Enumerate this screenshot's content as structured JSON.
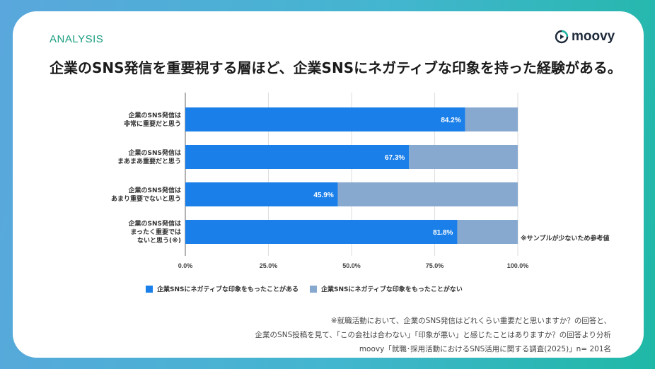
{
  "header": {
    "section_label": "ANALYSIS",
    "logo_text": "moovy",
    "headline": "企業のSNS発信を重要視する層ほど、企業SNSにネガティブな印象を持った経験がある。"
  },
  "chart_data": {
    "type": "bar",
    "orientation": "horizontal",
    "stacked": true,
    "percent_stacked": true,
    "categories": [
      [
        "企業のSNS発信は",
        "非常に重要だと思う"
      ],
      [
        "企業のSNS発信は",
        "まあまあ重要だと思う"
      ],
      [
        "企業のSNS発信は",
        "あまり重要でないと思う"
      ],
      [
        "企業のSNS発信は",
        "まったく重要では",
        "ないと思う(※)"
      ]
    ],
    "series": [
      {
        "name": "企業SNSにネガティブな印象をもったことがある",
        "values": [
          84.2,
          67.3,
          45.9,
          81.8
        ],
        "color": "#1a7fe8"
      },
      {
        "name": "企業SNSにネガティブな印象をもったことがない",
        "values": [
          15.8,
          32.7,
          54.1,
          18.2
        ],
        "color": "#88a9cf"
      }
    ],
    "data_labels": [
      "84.2%",
      "67.3%",
      "45.9%",
      "81.8%"
    ],
    "x_ticks": [
      "0.0%",
      "25.0%",
      "50.0%",
      "75.0%",
      "100.0%"
    ],
    "xlim": [
      0,
      100
    ],
    "grid": true,
    "legend_position": "bottom",
    "annotation": "※サンプルが少ないため参考値"
  },
  "footnotes": [
    "※就職活動において、企業のSNS発信はどれくらい重要だと思いますか？の回答と、",
    "企業のSNS投稿を見て、「この会社は合わない」「印象が悪い」と感じたことはありますか？の回答より分析",
    "moovy「就職･採用活動におけるSNS活用に関する調査(2025)」n= 201名"
  ],
  "colors": {
    "accent": "#1a9d7f",
    "bar_primary": "#1a7fe8",
    "bar_secondary": "#88a9cf"
  }
}
